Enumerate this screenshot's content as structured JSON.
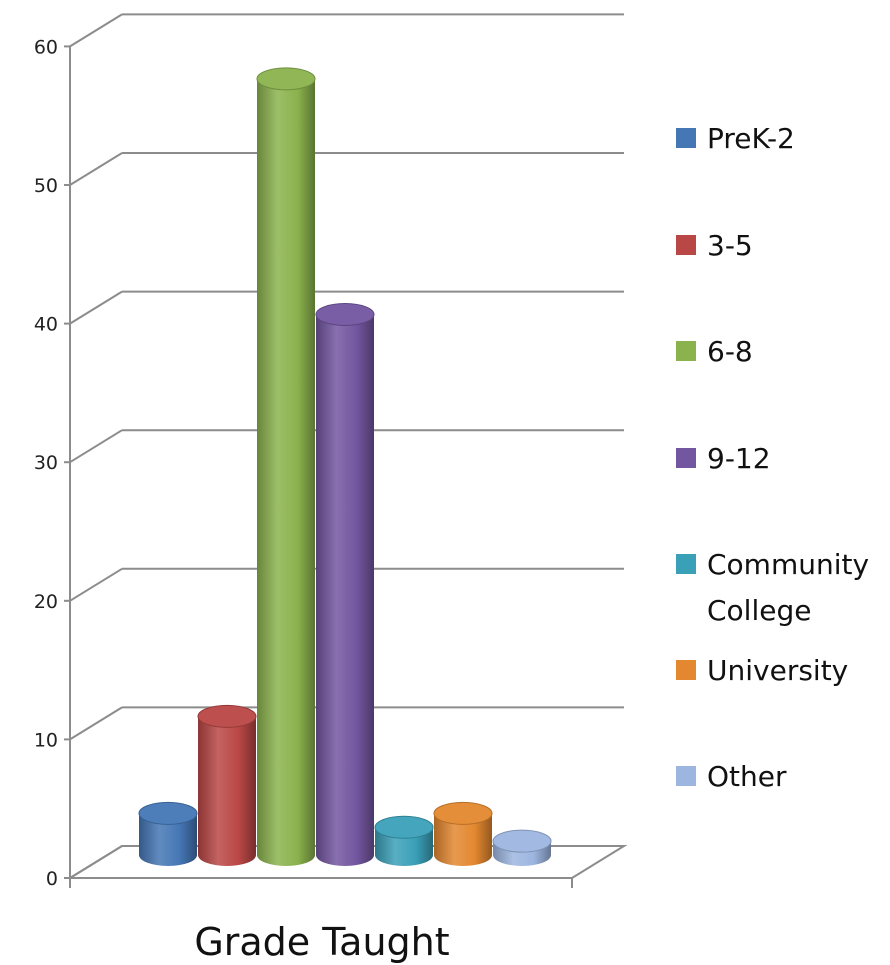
{
  "chart_data": {
    "type": "bar",
    "title": "",
    "xlabel": "Grade Taught",
    "ylabel": "",
    "categories": [
      "Grade Taught"
    ],
    "ylim": [
      0,
      60
    ],
    "yticks": [
      0,
      10,
      20,
      30,
      40,
      50,
      60
    ],
    "grid": true,
    "legend_position": "right",
    "series": [
      {
        "name": "PreK-2",
        "values": [
          3
        ],
        "color": "#4577b5"
      },
      {
        "name": "3-5",
        "values": [
          10
        ],
        "color": "#b94745"
      },
      {
        "name": "6-8",
        "values": [
          56
        ],
        "color": "#8ab24d"
      },
      {
        "name": "9-12",
        "values": [
          39
        ],
        "color": "#7356a0"
      },
      {
        "name": "Community College",
        "values": [
          2
        ],
        "color": "#3aa0b8"
      },
      {
        "name": "University",
        "values": [
          3
        ],
        "color": "#e38830"
      },
      {
        "name": "Other",
        "values": [
          1
        ],
        "color": "#9db6e0"
      }
    ]
  }
}
